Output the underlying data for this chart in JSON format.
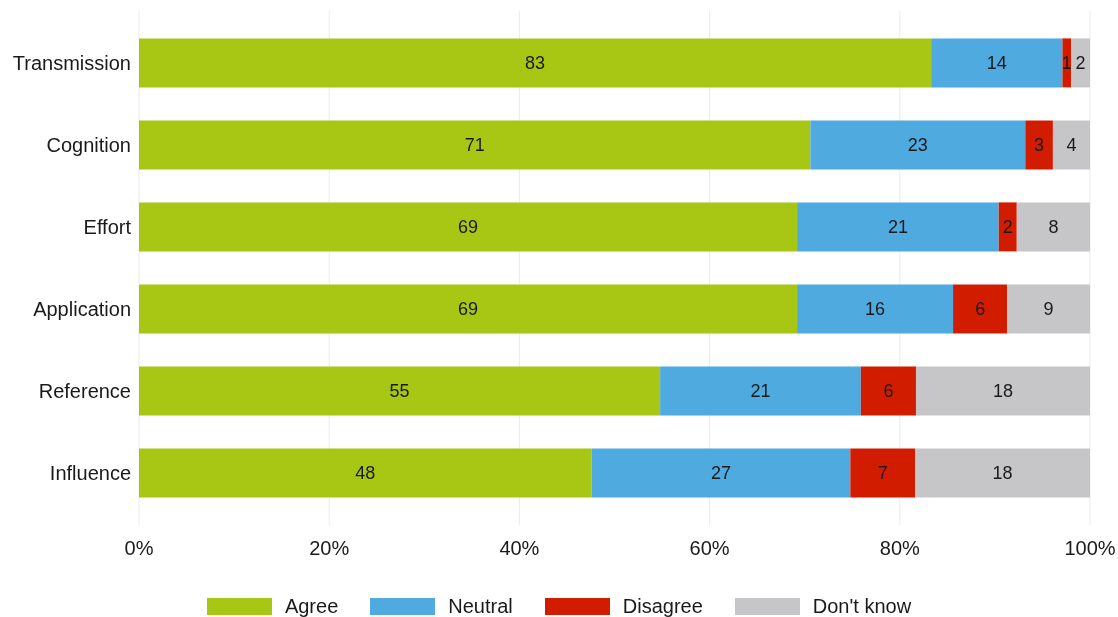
{
  "chart_data": {
    "type": "bar",
    "orientation": "horizontal",
    "stacked": true,
    "categories": [
      "Transmission",
      "Cognition",
      "Effort",
      "Application",
      "Reference",
      "Influence"
    ],
    "series": [
      {
        "name": "Agree",
        "color": "#a8c614",
        "values": [
          83.3,
          70.6,
          69.2,
          69.2,
          54.8,
          47.6
        ],
        "value_labels": [
          "83",
          "71",
          "69",
          "69",
          "55",
          "48"
        ]
      },
      {
        "name": "Neutral",
        "color": "#4eaadf",
        "values": [
          13.8,
          22.6,
          21.2,
          16.4,
          21.1,
          27.2
        ],
        "value_labels": [
          "14",
          "23",
          "21",
          "16",
          "21",
          "27"
        ]
      },
      {
        "name": "Disagree",
        "color": "#d21c00",
        "values": [
          0.9,
          2.9,
          1.9,
          5.7,
          5.8,
          6.8
        ],
        "value_labels": [
          "1",
          "3",
          "2",
          "6",
          "6",
          "7"
        ]
      },
      {
        "name": "Don't know",
        "color": "#c6c6c8",
        "values": [
          2.0,
          3.9,
          7.7,
          8.7,
          18.3,
          18.4
        ],
        "value_labels": [
          "2",
          "4",
          "8",
          "9",
          "18",
          "18"
        ]
      }
    ],
    "xlim": [
      0,
      100
    ],
    "xticks": [
      {
        "value": 0,
        "label": "0%"
      },
      {
        "value": 20,
        "label": "20%"
      },
      {
        "value": 40,
        "label": "40%"
      },
      {
        "value": 60,
        "label": "60%"
      },
      {
        "value": 80,
        "label": "80%"
      },
      {
        "value": 100,
        "label": "100%"
      }
    ],
    "grid": "x",
    "legend": "bottom"
  }
}
